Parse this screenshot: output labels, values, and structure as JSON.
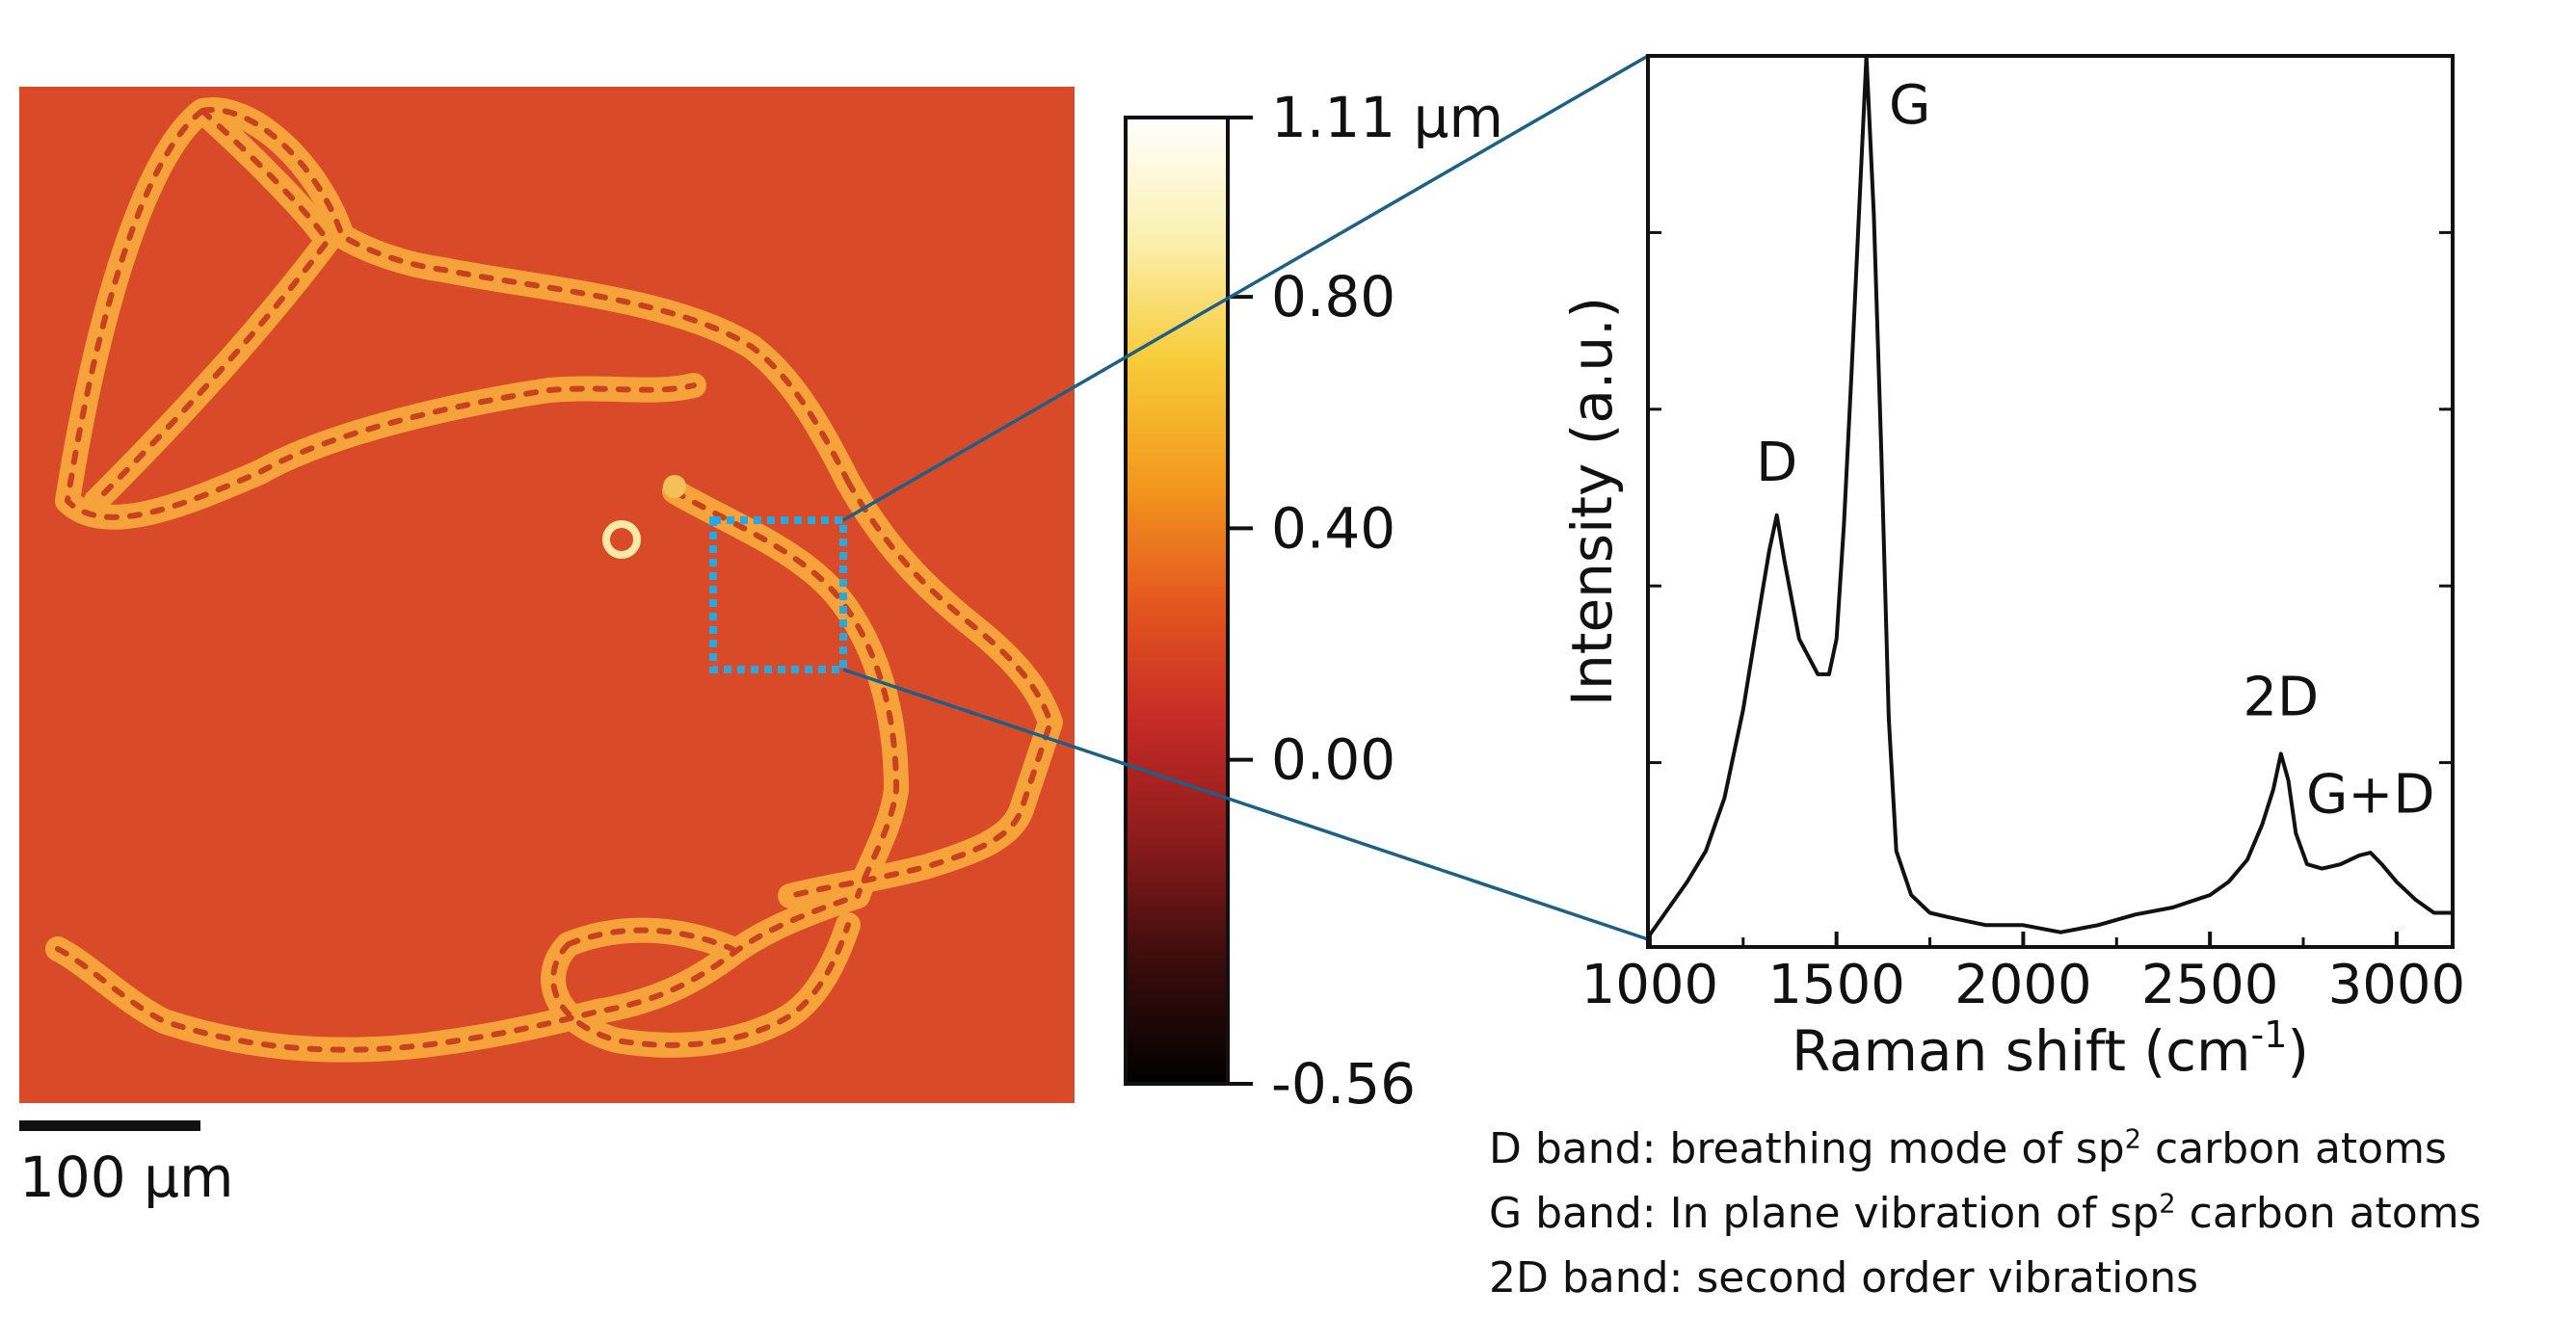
{
  "afm_image": {
    "background_color": "#d94a28",
    "fiber_color": "#f5a33a",
    "zoom_box_color": "#29a8e0",
    "scale_bar_label": "100 μm"
  },
  "colorbar": {
    "ticks": [
      "1.11 μm",
      "0.80",
      "0.40",
      "0.00",
      "-0.56"
    ],
    "tick_values": [
      1.11,
      0.8,
      0.4,
      0.0,
      -0.56
    ],
    "range": [
      -0.56,
      1.11
    ],
    "colors": [
      "#000000",
      "#3a0c0c",
      "#8a1b1b",
      "#c62a26",
      "#e5581f",
      "#f39a1e",
      "#f7cc3a",
      "#fbf0b0",
      "#ffffff"
    ]
  },
  "connector_color": "#1d5f86",
  "chart_data": {
    "type": "line",
    "xlabel": "Raman shift (cm-1)",
    "ylabel": "Intensity (a.u.)",
    "xlim": [
      995,
      3150
    ],
    "ylim": [
      0,
      100
    ],
    "xticks": [
      1000,
      1500,
      2000,
      2500,
      3000
    ],
    "grid": false,
    "annotations": [
      {
        "label": "D",
        "x": 1340,
        "y": 48
      },
      {
        "label": "G",
        "x": 1580,
        "y": 100
      },
      {
        "label": "2D",
        "x": 2690,
        "y": 21
      },
      {
        "label": "G+D",
        "x": 2930,
        "y": 10
      }
    ],
    "series": [
      {
        "x": [
          1000,
          1050,
          1100,
          1150,
          1200,
          1250,
          1300,
          1320,
          1340,
          1360,
          1400,
          1450,
          1480,
          1500,
          1520,
          1540,
          1560,
          1580,
          1600,
          1620,
          1640,
          1660,
          1700,
          1750,
          1800,
          1900,
          2000,
          2100,
          2200,
          2300,
          2400,
          2500,
          2550,
          2600,
          2640,
          2670,
          2690,
          2710,
          2730,
          2760,
          2800,
          2850,
          2900,
          2930,
          2960,
          3000,
          3050,
          3100,
          3150
        ],
        "y": [
          0.5,
          3.5,
          6.5,
          10,
          16,
          26,
          39,
          44,
          48,
          43,
          34,
          30,
          30,
          34,
          47,
          64,
          82,
          100,
          82,
          55,
          25,
          10,
          5,
          3,
          2.5,
          1.6,
          1.6,
          0.8,
          1.6,
          2.8,
          3.6,
          5,
          6.5,
          9,
          13,
          17,
          21,
          18,
          12,
          8.5,
          8,
          8.5,
          9.5,
          9.8,
          8.5,
          6.5,
          4.5,
          3,
          3
        ]
      }
    ]
  },
  "notes": {
    "line1_prefix": "D band: breathing mode of sp",
    "line1_sup": "2",
    "line1_suffix": " carbon atoms",
    "line2_prefix": "G band: In plane vibration of sp",
    "line2_sup": "2",
    "line2_suffix": " carbon atoms",
    "line3": "2D band: second order vibrations"
  }
}
